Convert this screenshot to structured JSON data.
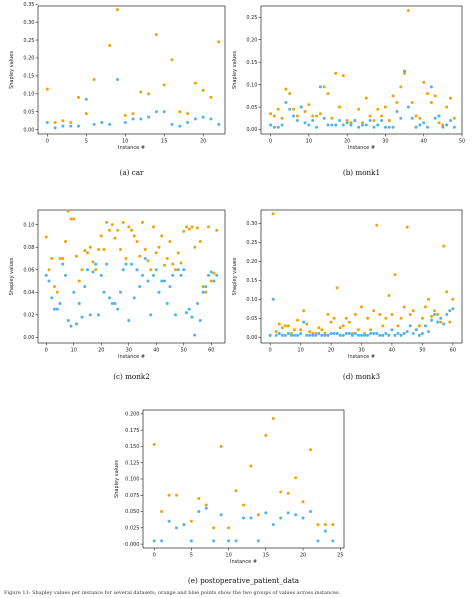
{
  "colors": {
    "orange": "#f0a30a",
    "blue": "#4fb3e8"
  },
  "footer_text": "Figure 11: Shapley values per instance for several datasets; orange and blue points show the two groups of values across instances.",
  "chart_data": [
    {
      "type": "scatter",
      "caption": "(a) car",
      "xlabel": "Instance #",
      "ylabel": "Shapley values",
      "xlim": [
        -1.2,
        22.8
      ],
      "ylim": [
        -0.012,
        0.345
      ],
      "xticks": [
        0,
        5,
        10,
        15,
        20
      ],
      "yticks": [
        0.0,
        0.05,
        0.1,
        0.15,
        0.2,
        0.25,
        0.3,
        0.35
      ],
      "ytick_decimals": 2,
      "series": [
        {
          "color_key": "orange",
          "x": [
            0,
            1,
            2,
            3,
            4,
            5,
            6,
            7,
            8,
            9,
            10,
            11,
            12,
            13,
            14,
            15,
            16,
            17,
            18,
            19,
            20,
            21,
            22
          ],
          "y": [
            0.113,
            0.02,
            0.025,
            0.02,
            0.09,
            0.045,
            0.14,
            0.02,
            0.235,
            0.335,
            0.04,
            0.045,
            0.105,
            0.1,
            0.265,
            0.125,
            0.195,
            0.05,
            0.045,
            0.13,
            0.11,
            0.09,
            0.245
          ]
        },
        {
          "color_key": "blue",
          "x": [
            0,
            1,
            2,
            3,
            4,
            5,
            6,
            7,
            8,
            9,
            10,
            11,
            12,
            13,
            14,
            15,
            16,
            17,
            18,
            19,
            20,
            21,
            22
          ],
          "y": [
            0.02,
            0.005,
            0.01,
            0.01,
            0.01,
            0.085,
            0.015,
            0.02,
            0.015,
            0.14,
            0.02,
            0.03,
            0.03,
            0.035,
            0.05,
            0.05,
            0.015,
            0.01,
            0.02,
            0.03,
            0.035,
            0.03,
            0.015
          ]
        }
      ]
    },
    {
      "type": "scatter",
      "caption": "(b) monk1",
      "xlabel": "Instance #",
      "ylabel": "Shapley values",
      "xlim": [
        -2.5,
        50
      ],
      "ylim": [
        -0.01,
        0.275
      ],
      "xticks": [
        0,
        10,
        20,
        30,
        40,
        50
      ],
      "xtick_labels": [
        "0",
        "10",
        "20",
        "30",
        "40",
        "50"
      ],
      "yticks": [
        0.0,
        0.05,
        0.1,
        0.15,
        0.2,
        0.25
      ],
      "ytick_decimals": 2,
      "series": [
        {
          "color_key": "orange",
          "x": [
            0,
            1,
            2,
            3,
            4,
            5,
            6,
            7,
            8,
            9,
            10,
            11,
            12,
            13,
            14,
            15,
            16,
            17,
            18,
            19,
            20,
            21,
            22,
            23,
            24,
            25,
            26,
            27,
            28,
            29,
            30,
            31,
            32,
            33,
            34,
            35,
            36,
            37,
            38,
            39,
            40,
            41,
            42,
            43,
            44,
            45,
            46,
            47,
            48
          ],
          "y": [
            0.035,
            0.03,
            0.045,
            0.025,
            0.09,
            0.08,
            0.045,
            0.03,
            0.05,
            0.04,
            0.055,
            0.03,
            0.03,
            0.035,
            0.095,
            0.08,
            0.025,
            0.125,
            0.05,
            0.12,
            0.02,
            0.015,
            0.02,
            0.045,
            0.015,
            0.07,
            0.03,
            0.02,
            0.045,
            0.03,
            0.05,
            0.02,
            0.075,
            0.06,
            0.095,
            0.125,
            0.265,
            0.06,
            0.03,
            0.025,
            0.105,
            0.08,
            0.06,
            0.075,
            0.015,
            0.01,
            0.05,
            0.07,
            0.025
          ]
        },
        {
          "color_key": "blue",
          "x": [
            0,
            1,
            2,
            3,
            4,
            5,
            6,
            7,
            8,
            9,
            10,
            11,
            12,
            13,
            14,
            15,
            16,
            17,
            18,
            19,
            20,
            21,
            22,
            23,
            24,
            25,
            26,
            27,
            28,
            29,
            30,
            31,
            32,
            33,
            34,
            35,
            36,
            37,
            38,
            39,
            40,
            41,
            42,
            43,
            44,
            45,
            46,
            47,
            48
          ],
          "y": [
            0.01,
            0.005,
            0.005,
            0.01,
            0.06,
            0.045,
            0.03,
            0.02,
            0.05,
            0.015,
            0.01,
            0.02,
            0.005,
            0.095,
            0.025,
            0.01,
            0.01,
            0.01,
            0.02,
            0.01,
            0.015,
            0.01,
            0.02,
            0.005,
            0.01,
            0.01,
            0.02,
            0.005,
            0.01,
            0.02,
            0.005,
            0.005,
            0.005,
            0.04,
            0.025,
            0.13,
            0.05,
            0.025,
            0.005,
            0.01,
            0.015,
            0.005,
            0.095,
            0.025,
            0.03,
            0.005,
            0.01,
            0.02,
            0.005
          ]
        }
      ]
    },
    {
      "type": "scatter",
      "caption": "(c) monk2",
      "xlabel": "Instance #",
      "ylabel": "Shapley values",
      "xlim": [
        -3,
        65
      ],
      "ylim": [
        -0.005,
        0.113
      ],
      "xticks": [
        0,
        10,
        20,
        30,
        40,
        50,
        60
      ],
      "yticks": [
        0.0,
        0.02,
        0.04,
        0.06,
        0.08,
        0.1
      ],
      "ytick_decimals": 2,
      "series": [
        {
          "color_key": "orange",
          "x": [
            0,
            1,
            2,
            3,
            4,
            5,
            6,
            7,
            8,
            9,
            10,
            11,
            12,
            13,
            14,
            15,
            16,
            17,
            18,
            19,
            20,
            21,
            22,
            23,
            24,
            25,
            26,
            27,
            28,
            29,
            30,
            31,
            32,
            33,
            34,
            35,
            36,
            37,
            38,
            39,
            40,
            41,
            42,
            43,
            44,
            45,
            46,
            47,
            48,
            49,
            50,
            51,
            52,
            53,
            54,
            55,
            56,
            57,
            58,
            59,
            60,
            61,
            62
          ],
          "y": [
            0.089,
            0.06,
            0.07,
            0.045,
            0.04,
            0.07,
            0.07,
            0.085,
            0.112,
            0.105,
            0.105,
            0.072,
            0.05,
            0.06,
            0.077,
            0.075,
            0.08,
            0.067,
            0.06,
            0.078,
            0.09,
            0.078,
            0.102,
            0.095,
            0.1,
            0.088,
            0.095,
            0.078,
            0.102,
            0.07,
            0.098,
            0.095,
            0.09,
            0.085,
            0.072,
            0.102,
            0.078,
            0.068,
            0.06,
            0.098,
            0.075,
            0.08,
            0.09,
            0.064,
            0.07,
            0.085,
            0.065,
            0.06,
            0.075,
            0.066,
            0.094,
            0.098,
            0.096,
            0.098,
            0.08,
            0.097,
            0.085,
            0.045,
            0.04,
            0.098,
            0.05,
            0.057,
            0.095
          ]
        },
        {
          "color_key": "blue",
          "x": [
            0,
            1,
            2,
            3,
            4,
            5,
            6,
            7,
            8,
            9,
            10,
            11,
            12,
            13,
            14,
            15,
            16,
            17,
            18,
            19,
            20,
            21,
            22,
            23,
            24,
            25,
            26,
            27,
            28,
            29,
            30,
            31,
            32,
            33,
            34,
            35,
            36,
            37,
            38,
            39,
            40,
            41,
            42,
            43,
            44,
            45,
            46,
            47,
            48,
            49,
            50,
            51,
            52,
            53,
            54,
            55,
            56,
            57,
            58,
            59,
            60,
            61,
            62
          ],
          "y": [
            0.055,
            0.05,
            0.035,
            0.025,
            0.025,
            0.03,
            0.065,
            0.055,
            0.015,
            0.01,
            0.04,
            0.012,
            0.03,
            0.018,
            0.045,
            0.06,
            0.02,
            0.058,
            0.065,
            0.02,
            0.055,
            0.04,
            0.065,
            0.035,
            0.03,
            0.03,
            0.025,
            0.04,
            0.06,
            0.065,
            0.015,
            0.065,
            0.035,
            0.06,
            0.045,
            0.055,
            0.07,
            0.05,
            0.02,
            0.055,
            0.06,
            0.04,
            0.05,
            0.05,
            0.03,
            0.045,
            0.055,
            0.02,
            0.06,
            0.055,
            0.06,
            0.022,
            0.025,
            0.018,
            0.002,
            0.03,
            0.015,
            0.04,
            0.045,
            0.055,
            0.058,
            0.05,
            0.055
          ]
        }
      ]
    },
    {
      "type": "scatter",
      "caption": "(d) monk3",
      "xlabel": "Instance #",
      "ylabel": "Shapley values",
      "xlim": [
        -3,
        63
      ],
      "ylim": [
        -0.015,
        0.335
      ],
      "xticks": [
        0,
        10,
        20,
        30,
        40,
        50,
        60
      ],
      "yticks": [
        0.0,
        0.05,
        0.1,
        0.15,
        0.2,
        0.25,
        0.3
      ],
      "ytick_decimals": 2,
      "series": [
        {
          "color_key": "orange",
          "x": [
            0,
            1,
            2,
            3,
            4,
            5,
            6,
            7,
            8,
            9,
            10,
            11,
            12,
            13,
            14,
            15,
            16,
            17,
            18,
            19,
            20,
            21,
            22,
            23,
            24,
            25,
            26,
            27,
            28,
            29,
            30,
            31,
            32,
            33,
            34,
            35,
            36,
            37,
            38,
            39,
            40,
            41,
            42,
            43,
            44,
            45,
            46,
            47,
            48,
            49,
            50,
            51,
            52,
            53,
            54,
            55,
            56,
            57,
            58,
            59,
            60
          ],
          "y": [
            0.005,
            0.325,
            0.015,
            0.035,
            0.025,
            0.03,
            0.03,
            0.01,
            0.02,
            0.045,
            0.02,
            0.07,
            0.035,
            0.015,
            0.01,
            0.01,
            0.025,
            0.02,
            0.01,
            0.06,
            0.04,
            0.05,
            0.13,
            0.025,
            0.03,
            0.05,
            0.04,
            0.01,
            0.06,
            0.02,
            0.08,
            0.01,
            0.05,
            0.02,
            0.07,
            0.295,
            0.06,
            0.03,
            0.05,
            0.11,
            0.06,
            0.165,
            0.03,
            0.05,
            0.08,
            0.29,
            0.06,
            0.07,
            0.02,
            0.03,
            0.05,
            0.08,
            0.1,
            0.055,
            0.07,
            0.06,
            0.04,
            0.24,
            0.12,
            0.04,
            0.1
          ]
        },
        {
          "color_key": "blue",
          "x": [
            0,
            1,
            2,
            3,
            4,
            5,
            6,
            7,
            8,
            9,
            10,
            11,
            12,
            13,
            14,
            15,
            16,
            17,
            18,
            19,
            20,
            21,
            22,
            23,
            24,
            25,
            26,
            27,
            28,
            29,
            30,
            31,
            32,
            33,
            34,
            35,
            36,
            37,
            38,
            39,
            40,
            41,
            42,
            43,
            44,
            45,
            46,
            47,
            48,
            49,
            50,
            51,
            52,
            53,
            54,
            55,
            56,
            57,
            58,
            59,
            60
          ],
          "y": [
            0.005,
            0.1,
            0.005,
            0.01,
            0.005,
            0.005,
            0.01,
            0.005,
            0.005,
            0.005,
            0.01,
            0.04,
            0.005,
            0.005,
            0.005,
            0.005,
            0.01,
            0.005,
            0.005,
            0.005,
            0.01,
            0.01,
            0.01,
            0.005,
            0.005,
            0.01,
            0.01,
            0.005,
            0.01,
            0.005,
            0.005,
            0.005,
            0.005,
            0.01,
            0.01,
            0.01,
            0.005,
            0.005,
            0.01,
            0.005,
            0.02,
            0.005,
            0.01,
            0.005,
            0.01,
            0.015,
            0.03,
            0.01,
            0.02,
            0.005,
            0.01,
            0.03,
            0.015,
            0.045,
            0.06,
            0.04,
            0.05,
            0.035,
            0.06,
            0.07,
            0.075
          ]
        }
      ]
    },
    {
      "type": "scatter",
      "caption": "(e) postoperative_patient_data",
      "xlabel": "Instance #",
      "ylabel": "Shapley values",
      "xlim": [
        -1.5,
        25.5
      ],
      "ylim": [
        -0.006,
        0.206
      ],
      "xticks": [
        0,
        5,
        10,
        15,
        20,
        25
      ],
      "yticks": [
        0.0,
        0.025,
        0.05,
        0.075,
        0.1,
        0.125,
        0.15,
        0.175,
        0.2
      ],
      "ytick_decimals": 3,
      "series": [
        {
          "color_key": "orange",
          "x": [
            0,
            1,
            2,
            3,
            4,
            5,
            6,
            7,
            8,
            9,
            10,
            11,
            12,
            13,
            14,
            15,
            16,
            17,
            18,
            19,
            20,
            21,
            22,
            23,
            24
          ],
          "y": [
            0.153,
            0.05,
            0.075,
            0.075,
            0.03,
            0.035,
            0.07,
            0.06,
            0.025,
            0.15,
            0.025,
            0.082,
            0.06,
            0.12,
            0.045,
            0.167,
            0.193,
            0.08,
            0.078,
            0.102,
            0.065,
            0.145,
            0.03,
            0.03,
            0.03
          ]
        },
        {
          "color_key": "blue",
          "x": [
            0,
            1,
            2,
            3,
            4,
            5,
            6,
            7,
            8,
            9,
            10,
            11,
            12,
            13,
            14,
            15,
            16,
            17,
            18,
            19,
            20,
            21,
            22,
            23,
            24
          ],
          "y": [
            0.005,
            0.005,
            0.035,
            0.025,
            0.03,
            0.005,
            0.05,
            0.055,
            0.005,
            0.045,
            0.005,
            0.005,
            0.04,
            0.04,
            0.005,
            0.048,
            0.03,
            0.04,
            0.048,
            0.045,
            0.04,
            0.05,
            0.005,
            0.02,
            0.005
          ]
        }
      ]
    }
  ]
}
